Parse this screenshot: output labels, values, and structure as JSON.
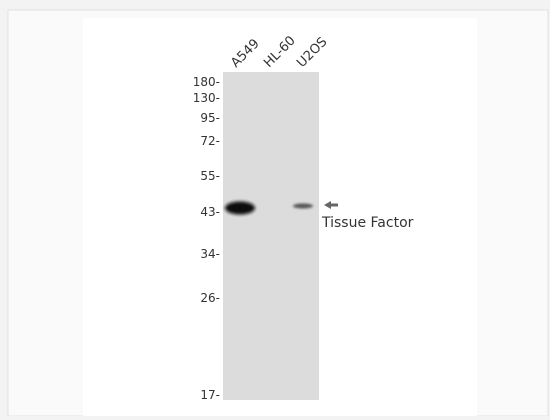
{
  "blot": {
    "lanes": [
      "A549",
      "HL-60",
      "U2OS"
    ],
    "markers": [
      "180-",
      "130-",
      "95-",
      "72-",
      "55-",
      "43-",
      "34-",
      "26-",
      "17-"
    ],
    "band_label": "Tissue Factor"
  }
}
